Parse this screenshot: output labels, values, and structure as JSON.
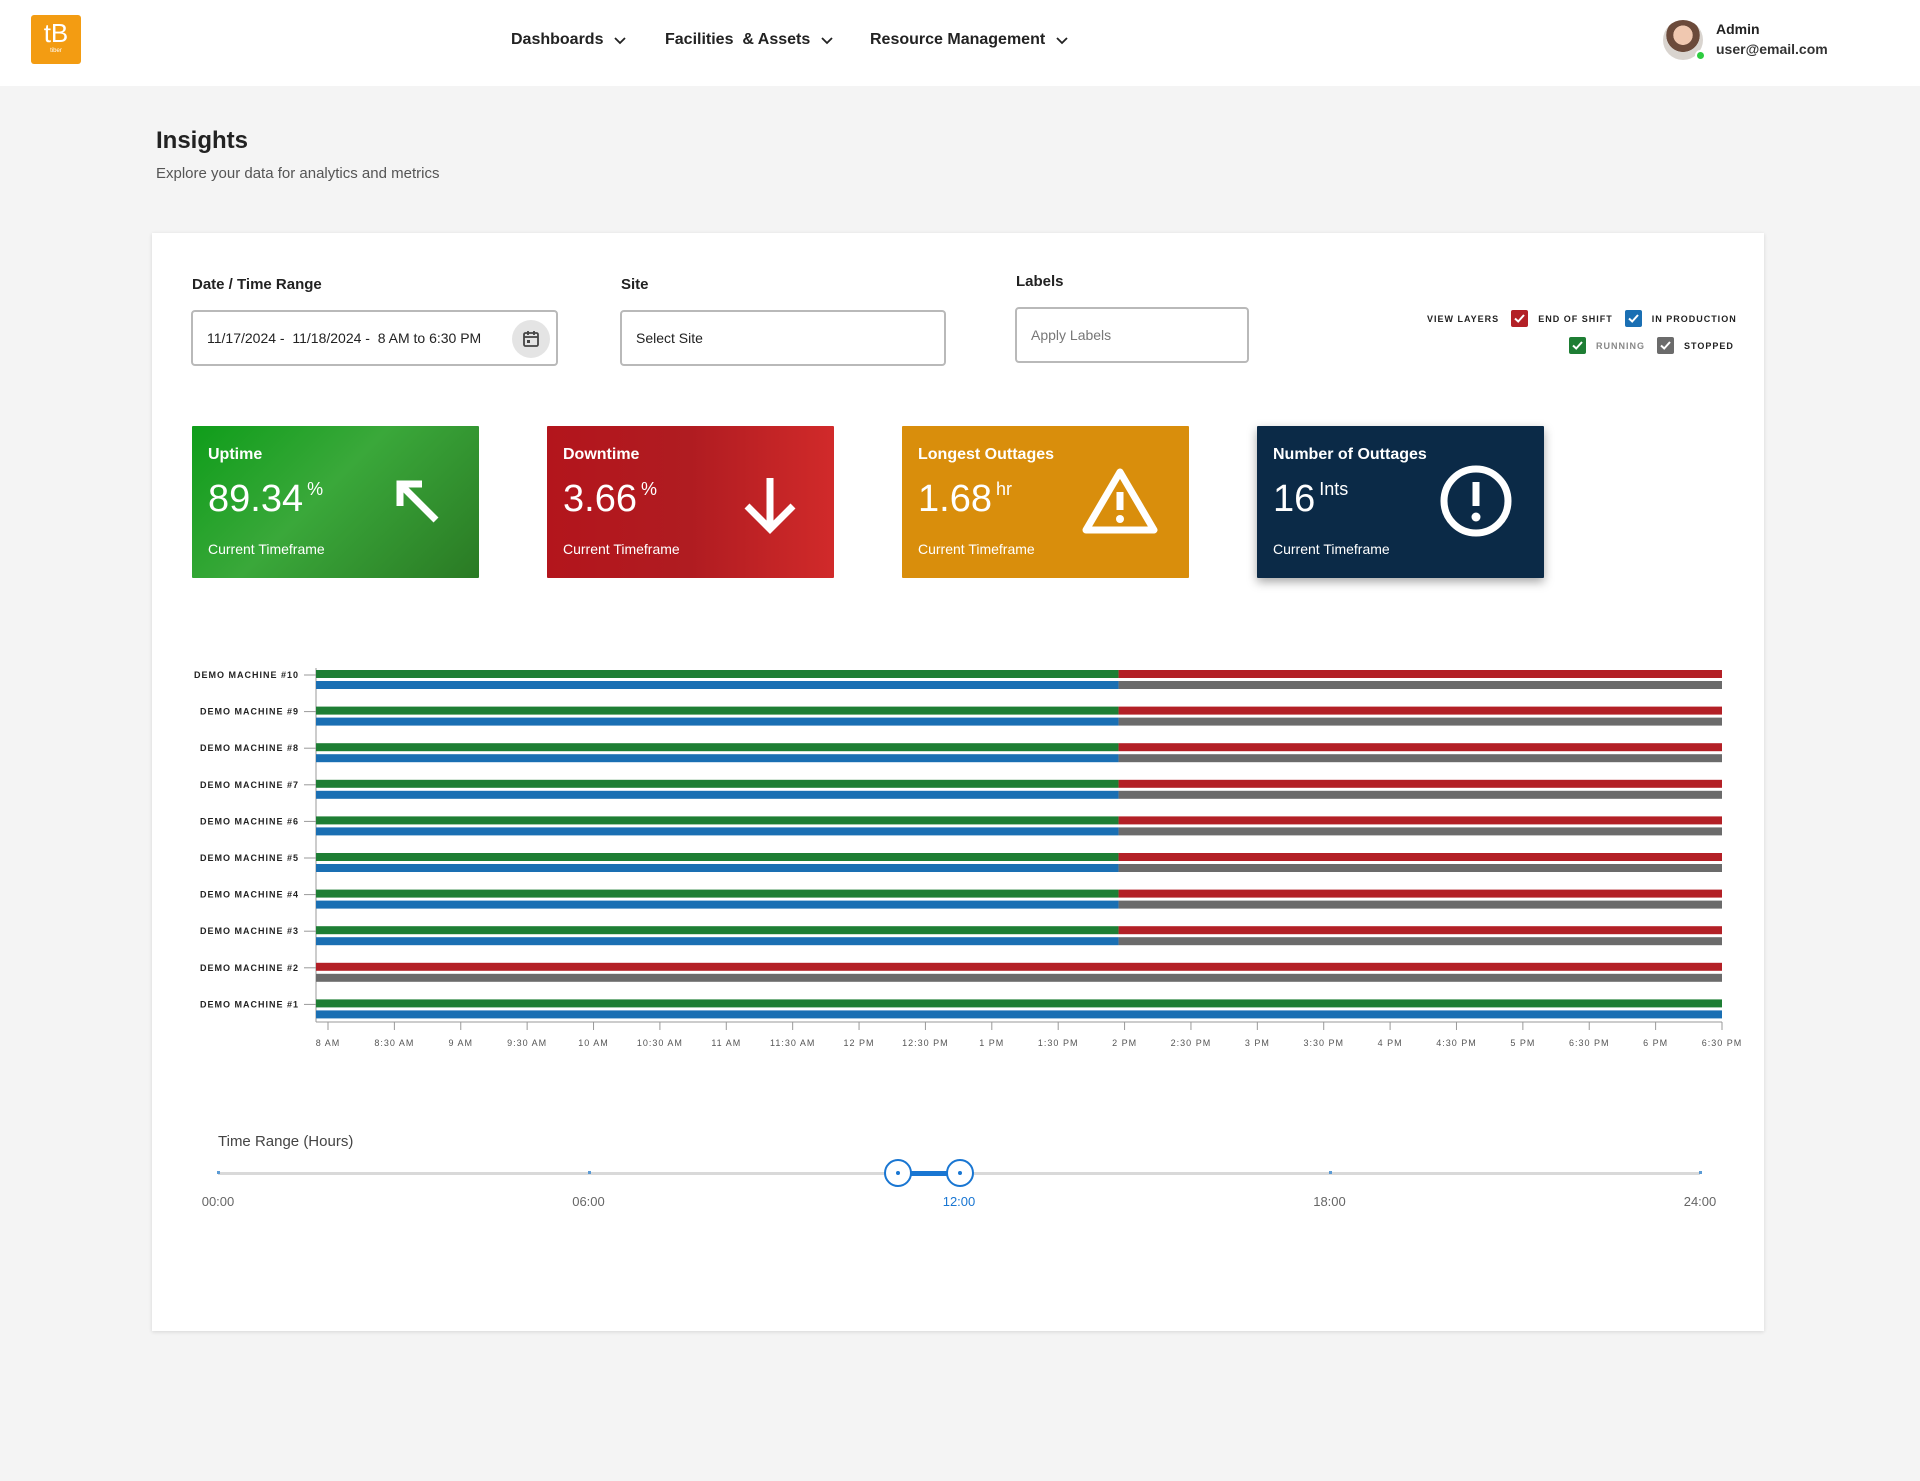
{
  "app": {
    "logo_mark": "tB",
    "logo_sub": "tiber",
    "brand_color": "#f39c12"
  },
  "nav": {
    "items": [
      {
        "label": "Dashboards"
      },
      {
        "label": "Facilities  & Assets"
      },
      {
        "label": "Resource Management"
      }
    ]
  },
  "user": {
    "name": "Admin",
    "email": "user@email.com",
    "status_color": "#2ecc40"
  },
  "page": {
    "title": "Insights",
    "subtitle": "Explore your data for analytics and metrics"
  },
  "filters": {
    "date_label": "Date / Time Range",
    "date_value": "11/17/2024 -  11/18/2024 -  8 AM to 6:30 PM",
    "site_label": "Site",
    "site_placeholder": "Select Site",
    "labels_label": "Labels",
    "labels_placeholder": "Apply Labels"
  },
  "layers": {
    "title": "VIEW LAYERS",
    "items": [
      {
        "label": "END OF SHIFT",
        "color": "#b32026",
        "checked": true
      },
      {
        "label": "IN PRODUCTION",
        "color": "#1a6fb3",
        "checked": true
      },
      {
        "label": "RUNNING",
        "color": "#1e7e34",
        "checked": true
      },
      {
        "label": "STOPPED",
        "color": "#6b6b6b",
        "checked": true
      }
    ]
  },
  "kpis": [
    {
      "title": "Uptime",
      "value": "89.34",
      "unit": "%",
      "foot": "Current Timeframe",
      "icon": "arrow-up-left-icon"
    },
    {
      "title": "Downtime",
      "value": "3.66",
      "unit": "%",
      "foot": "Current Timeframe",
      "icon": "arrow-down-icon"
    },
    {
      "title": "Longest Outtages",
      "value": "1.68",
      "unit": "hr",
      "foot": "Current Timeframe",
      "icon": "warning-triangle-icon"
    },
    {
      "title": "Number of Outtages",
      "value": "16",
      "unit": "Ints",
      "foot": "Current Timeframe",
      "icon": "alert-circle-icon"
    }
  ],
  "chart_data": {
    "type": "timeline",
    "x_ticks": [
      "8 AM",
      "8:30 AM",
      "9 AM",
      "9:30 AM",
      "10 AM",
      "10:30 AM",
      "11 AM",
      "11:30 AM",
      "12 PM",
      "12:30 PM",
      "1 PM",
      "1:30 PM",
      "2 PM",
      "2:30 PM",
      "3 PM",
      "3:30 PM",
      "4 PM",
      "4:30 PM",
      "5 PM",
      "6:30 PM",
      "6 PM",
      "6:30 PM"
    ],
    "machines": [
      {
        "name": "DEMO MACHINE #10",
        "switch_tick": "2 PM"
      },
      {
        "name": "DEMO MACHINE #9",
        "switch_tick": "2 PM"
      },
      {
        "name": "DEMO MACHINE #8",
        "switch_tick": "2 PM"
      },
      {
        "name": "DEMO MACHINE #7",
        "switch_tick": "2 PM"
      },
      {
        "name": "DEMO MACHINE #6",
        "switch_tick": "2 PM"
      },
      {
        "name": "DEMO MACHINE #5",
        "switch_tick": "2 PM"
      },
      {
        "name": "DEMO MACHINE #4",
        "switch_tick": "2 PM"
      },
      {
        "name": "DEMO MACHINE #3",
        "switch_tick": "2 PM"
      },
      {
        "name": "DEMO MACHINE #2",
        "switch_tick": "start"
      },
      {
        "name": "DEMO MACHINE #1",
        "switch_tick": "end"
      }
    ],
    "before_switch": {
      "top": "running",
      "bottom": "in production"
    },
    "after_switch": {
      "top": "end of shift",
      "bottom": "stopped"
    },
    "colors": {
      "running": "#1e7e34",
      "in production": "#1a6fb3",
      "end of shift": "#b32026",
      "stopped": "#6b6b6b"
    }
  },
  "slider": {
    "label": "Time Range (Hours)",
    "ticks": [
      "00:00",
      "06:00",
      "12:00",
      "18:00",
      "24:00"
    ],
    "range_start": "11:00",
    "range_end": "12:00",
    "active_tick": "12:00",
    "color": "#1976d2"
  }
}
